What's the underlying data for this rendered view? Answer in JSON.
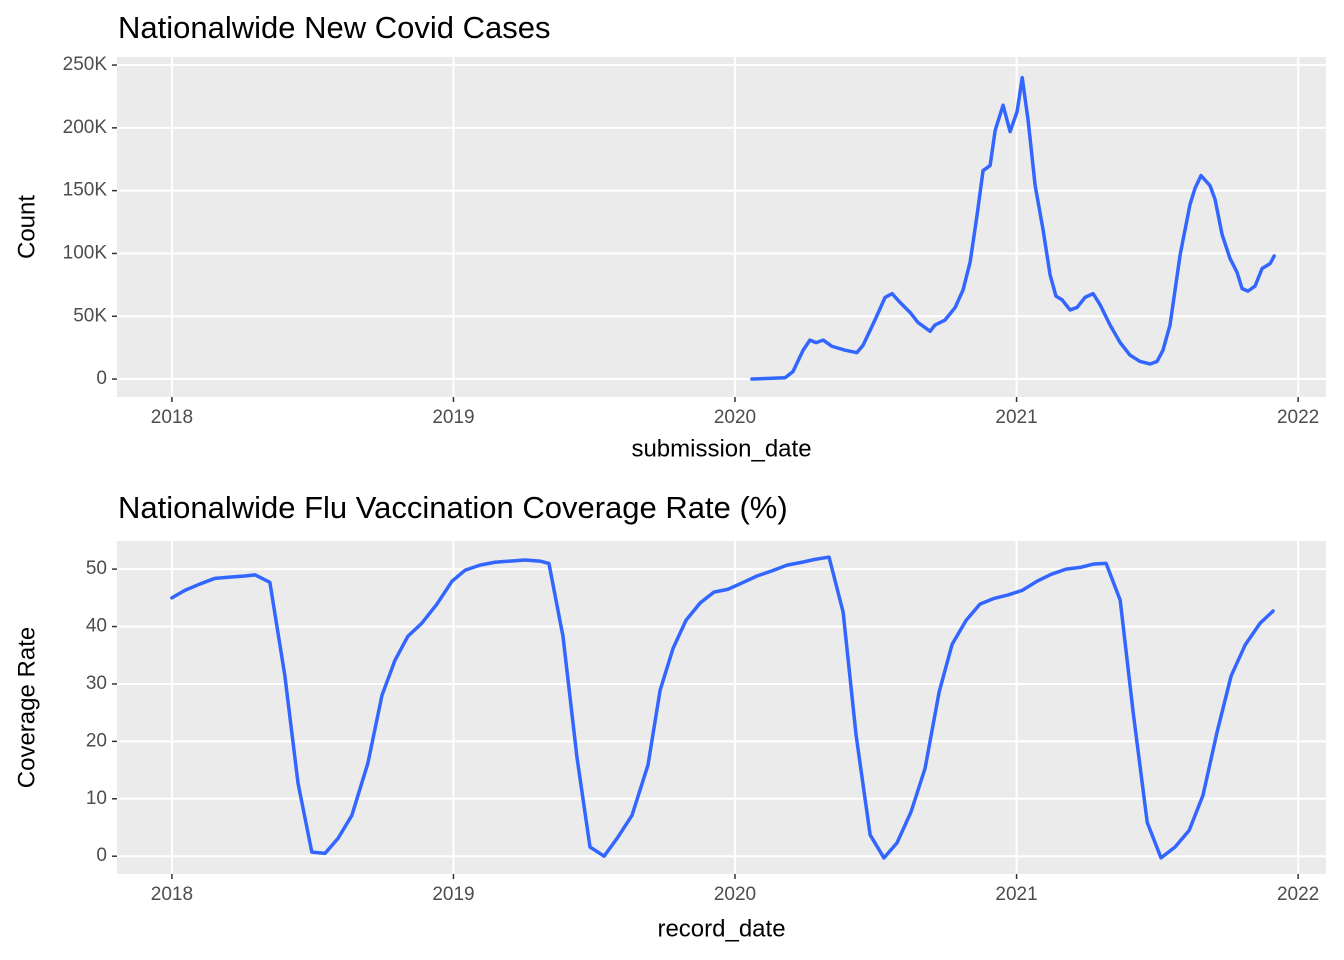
{
  "chart_data": [
    {
      "type": "line",
      "title": "Nationalwide New Covid Cases",
      "x_label": "submission_date",
      "y_label": "Count",
      "x": [
        2020.06,
        2020.178,
        2020.206,
        2020.242,
        2020.266,
        2020.288,
        2020.313,
        2020.345,
        2020.391,
        2020.433,
        2020.455,
        2020.497,
        2020.533,
        2020.558,
        2020.586,
        2020.622,
        2020.65,
        2020.693,
        2020.71,
        2020.746,
        2020.782,
        2020.81,
        2020.835,
        2020.86,
        2020.881,
        2020.906,
        2020.924,
        2020.952,
        2020.977,
        2021.002,
        2021.02,
        2021.041,
        2021.066,
        2021.094,
        2021.119,
        2021.14,
        2021.162,
        2021.19,
        2021.215,
        2021.243,
        2021.272,
        2021.297,
        2021.332,
        2021.368,
        2021.403,
        2021.439,
        2021.474,
        2021.499,
        2021.52,
        2021.545,
        2021.581,
        2021.616,
        2021.634,
        2021.655,
        2021.687,
        2021.705,
        2021.73,
        2021.758,
        2021.783,
        2021.801,
        2021.822,
        2021.847,
        2021.872,
        2021.901,
        2021.915
      ],
      "series": [
        {
          "color": "#3366ff",
          "values": [
            0,
            1000,
            6000,
            23000,
            31000,
            29000,
            31000,
            26000,
            23000,
            21000,
            27000,
            47000,
            65000,
            68000,
            61000,
            53000,
            45000,
            38000,
            43000,
            47000,
            57000,
            71000,
            93000,
            131000,
            166000,
            170000,
            198000,
            218000,
            197000,
            213000,
            240000,
            206000,
            154000,
            119000,
            83000,
            66000,
            63000,
            55000,
            57000,
            65000,
            68000,
            59000,
            43000,
            29000,
            19000,
            14000,
            12000,
            14000,
            23000,
            43000,
            99000,
            139000,
            152000,
            162000,
            154000,
            143000,
            115000,
            96000,
            85000,
            72000,
            70000,
            74000,
            88000,
            92000,
            98000
          ]
        }
      ],
      "xlim": [
        2017.805,
        2022.099
      ],
      "xticks": [
        2018,
        2019,
        2020,
        2021,
        2022
      ],
      "ylim": [
        -14300,
        256400
      ],
      "yticks": [
        0,
        {
          "value": 50000,
          "label": "50K"
        },
        {
          "value": 100000,
          "label": "100K"
        },
        {
          "value": 150000,
          "label": "150K"
        },
        {
          "value": 200000,
          "label": "200K"
        },
        {
          "value": 250000,
          "label": "250K"
        }
      ],
      "grid": true
    },
    {
      "type": "line",
      "title": "Nationalwide Flu Vaccination Coverage Rate (%)",
      "x_label": "record_date",
      "y_label": "Coverage Rate",
      "x": [
        2018.0,
        2018.046,
        2018.099,
        2018.153,
        2018.206,
        2018.259,
        2018.295,
        2018.348,
        2018.401,
        2018.448,
        2018.497,
        2018.544,
        2018.59,
        2018.639,
        2018.696,
        2018.746,
        2018.792,
        2018.838,
        2018.888,
        2018.941,
        2018.995,
        2019.041,
        2019.094,
        2019.147,
        2019.201,
        2019.254,
        2019.307,
        2019.339,
        2019.389,
        2019.439,
        2019.485,
        2019.535,
        2019.581,
        2019.634,
        2019.691,
        2019.734,
        2019.78,
        2019.826,
        2019.876,
        2019.925,
        2019.975,
        2020.025,
        2020.078,
        2020.131,
        2020.185,
        2020.238,
        2020.284,
        2020.334,
        2020.384,
        2020.43,
        2020.48,
        2020.529,
        2020.575,
        2020.625,
        2020.675,
        2020.725,
        2020.771,
        2020.821,
        2020.87,
        2020.92,
        2020.97,
        2021.02,
        2021.073,
        2021.123,
        2021.176,
        2021.226,
        2021.275,
        2021.318,
        2021.368,
        2021.414,
        2021.464,
        2021.513,
        2021.563,
        2021.613,
        2021.662,
        2021.712,
        2021.762,
        2021.812,
        2021.865,
        2021.911
      ],
      "series": [
        {
          "color": "#3366ff",
          "values": [
            45.0,
            46.3,
            47.4,
            48.4,
            48.6,
            48.8,
            49.0,
            47.7,
            31.5,
            12.7,
            0.7,
            0.5,
            3.1,
            7.1,
            16.2,
            28.0,
            34.1,
            38.3,
            40.6,
            43.9,
            47.9,
            49.8,
            50.7,
            51.2,
            51.4,
            51.6,
            51.4,
            51.0,
            38.3,
            17.1,
            1.6,
            0,
            3.1,
            7.1,
            15.9,
            28.9,
            36.2,
            41.1,
            44.1,
            46.0,
            46.5,
            47.6,
            48.8,
            49.7,
            50.7,
            51.2,
            51.7,
            52.1,
            42.5,
            21.1,
            3.7,
            -0.3,
            2.3,
            7.7,
            15.3,
            28.6,
            36.9,
            41.1,
            43.9,
            44.9,
            45.5,
            46.3,
            47.9,
            49.1,
            50.0,
            50.3,
            50.9,
            51.0,
            44.6,
            25.1,
            5.9,
            -0.3,
            1.6,
            4.5,
            10.6,
            21.6,
            31.4,
            36.8,
            40.6,
            42.7
          ]
        }
      ],
      "xlim": [
        2017.805,
        2022.099
      ],
      "xticks": [
        2018,
        2019,
        2020,
        2021,
        2022
      ],
      "ylim": [
        -3.1,
        54.9
      ],
      "yticks": [
        0,
        10,
        20,
        30,
        40,
        50
      ],
      "grid": true
    }
  ]
}
